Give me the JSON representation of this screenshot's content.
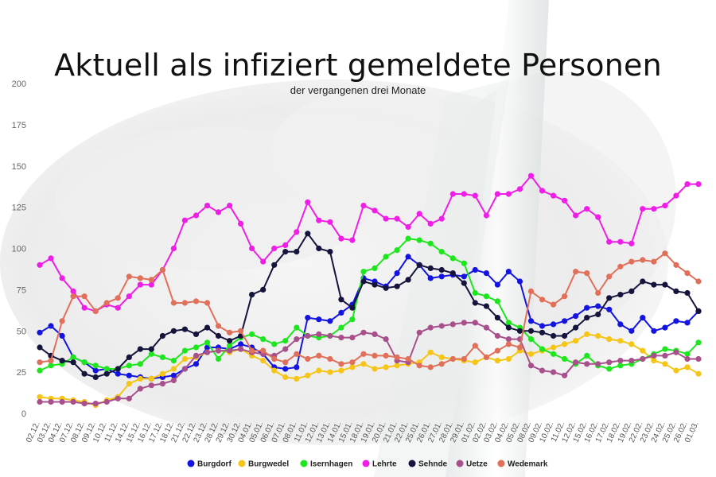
{
  "header": {
    "title": "Aktuell als infiziert gemeldete Personen",
    "subtitle": "der vergangenen drei Monate"
  },
  "chart_data": {
    "type": "line",
    "title": "Aktuell als infiziert gemeldete Personen",
    "subtitle": "der vergangenen drei Monate",
    "xlabel": "",
    "ylabel": "",
    "ylim": [
      0,
      200
    ],
    "yticks": [
      0,
      25,
      50,
      75,
      100,
      125,
      150,
      175,
      200
    ],
    "grid": false,
    "legend": "bottom",
    "x": [
      "02.12.",
      "03.12.",
      "04.12.",
      "07.12.",
      "08.12.",
      "09.12.",
      "10.12.",
      "11.12.",
      "14.12.",
      "15.12.",
      "16.12.",
      "17.12.",
      "18.12.",
      "21.12.",
      "22.12.",
      "23.12.",
      "28.12.",
      "29.12.",
      "30.12.",
      "04.01.",
      "05.01.",
      "06.01.",
      "07.01.",
      "08.01.",
      "11.01.",
      "12.01.",
      "13.01.",
      "14.01.",
      "15.01.",
      "18.01.",
      "19.01.",
      "20.01.",
      "21.01.",
      "22.01.",
      "25.01.",
      "26.01.",
      "27.01.",
      "28.01.",
      "29.01.",
      "01.02.",
      "02.02.",
      "03.02.",
      "04.02.",
      "05.02.",
      "08.02.",
      "09.02.",
      "10.02.",
      "11.02.",
      "12.02.",
      "15.02.",
      "16.02.",
      "17.02.",
      "18.02.",
      "19.02.",
      "22.02.",
      "23.02.",
      "24.02.",
      "25.02.",
      "26.02.",
      "01.03."
    ],
    "x_tick_labels": [
      "02.12.",
      "03.12.",
      "04.12.",
      "07.12.",
      "08.12.",
      "09.12.",
      "10.12.",
      "11.12.",
      "14.12.",
      "15.12.",
      "16.12.",
      "17.12.",
      "18.12.",
      "21.12.",
      "22.12.",
      "23.12.",
      "28.12.",
      "29.12.",
      "30.12.",
      "04.01.",
      "05.01.",
      "06.01.",
      "07.01.",
      "08.01.",
      "11.01.",
      "12.01.",
      "13.01.",
      "14.01.",
      "15.01.",
      "18.01.",
      "19.01.",
      "20.01.",
      "21.01.",
      "22.01.",
      "25.01.",
      "26.01.",
      "27.01.",
      "28.01.",
      "29.01.",
      "01.02.",
      "02.02.",
      "03.02.",
      "04.02.",
      "05.02.",
      "08.02.",
      "09.02.",
      "10.02.",
      "11.02.",
      "12.02.",
      "15.02.",
      "16.02.",
      "17.02.",
      "18.02.",
      "19.02.",
      "22.02.",
      "23.02.",
      "24.02.",
      "25.02.",
      "26.02.",
      "01.03."
    ],
    "series": [
      {
        "name": "Burgdorf",
        "color": "#1414e0",
        "values": [
          49,
          53,
          47,
          34,
          31,
          26,
          27,
          24,
          23,
          22,
          21,
          22,
          23,
          27,
          30,
          40,
          40,
          39,
          42,
          40,
          36,
          28,
          27,
          28,
          58,
          57,
          56,
          61,
          66,
          82,
          80,
          77,
          85,
          95,
          90,
          82,
          83,
          84,
          83,
          87,
          85,
          78,
          86,
          80,
          56,
          53,
          54,
          56,
          59,
          64,
          65,
          63,
          54,
          50,
          58,
          50,
          52,
          56,
          55,
          62
        ]
      },
      {
        "name": "Burgwedel",
        "color": "#f5c518",
        "values": [
          10,
          9,
          9,
          8,
          7,
          5,
          8,
          10,
          18,
          21,
          21,
          24,
          27,
          33,
          34,
          37,
          38,
          37,
          39,
          35,
          32,
          26,
          22,
          21,
          23,
          26,
          25,
          26,
          28,
          30,
          27,
          28,
          29,
          30,
          31,
          37,
          34,
          33,
          32,
          31,
          34,
          32,
          33,
          38,
          36,
          38,
          40,
          42,
          44,
          48,
          47,
          45,
          44,
          42,
          38,
          32,
          30,
          26,
          28,
          24
        ]
      },
      {
        "name": "Isernhagen",
        "color": "#1ee61e",
        "values": [
          26,
          29,
          30,
          34,
          31,
          29,
          27,
          27,
          29,
          30,
          36,
          34,
          32,
          38,
          40,
          43,
          33,
          41,
          46,
          48,
          45,
          42,
          44,
          52,
          47,
          46,
          47,
          52,
          57,
          86,
          88,
          95,
          99,
          106,
          105,
          103,
          98,
          94,
          91,
          73,
          71,
          68,
          55,
          52,
          45,
          39,
          36,
          33,
          30,
          35,
          29,
          27,
          29,
          30,
          33,
          36,
          39,
          38,
          36,
          43
        ]
      },
      {
        "name": "Lehrte",
        "color": "#ee1ee6",
        "values": [
          90,
          94,
          82,
          74,
          64,
          62,
          66,
          64,
          71,
          78,
          78,
          87,
          100,
          117,
          120,
          126,
          122,
          126,
          115,
          100,
          92,
          100,
          102,
          110,
          128,
          117,
          116,
          106,
          105,
          126,
          123,
          118,
          118,
          113,
          121,
          115,
          118,
          133,
          133,
          132,
          120,
          133,
          133,
          136,
          144,
          135,
          132,
          129,
          120,
          124,
          119,
          104,
          104,
          103,
          124,
          124,
          126,
          132,
          139,
          139
        ]
      },
      {
        "name": "Sehnde",
        "color": "#14143c",
        "values": [
          40,
          35,
          32,
          31,
          24,
          22,
          24,
          27,
          34,
          39,
          39,
          47,
          50,
          51,
          48,
          52,
          47,
          44,
          47,
          72,
          75,
          90,
          98,
          98,
          109,
          100,
          98,
          69,
          64,
          80,
          78,
          76,
          77,
          81,
          90,
          88,
          87,
          85,
          79,
          67,
          65,
          58,
          52,
          50,
          50,
          49,
          47,
          47,
          52,
          58,
          60,
          70,
          72,
          74,
          80,
          78,
          78,
          74,
          73,
          62
        ]
      },
      {
        "name": "Uetze",
        "color": "#a8508c",
        "values": [
          7,
          7,
          7,
          7,
          6,
          6,
          7,
          9,
          9,
          15,
          17,
          18,
          20,
          27,
          35,
          37,
          38,
          38,
          39,
          37,
          36,
          35,
          39,
          45,
          47,
          48,
          47,
          46,
          46,
          49,
          48,
          45,
          32,
          31,
          49,
          52,
          53,
          54,
          55,
          55,
          52,
          47,
          45,
          45,
          29,
          26,
          25,
          23,
          31,
          30,
          30,
          31,
          32,
          32,
          33,
          35,
          35,
          37,
          33,
          33
        ]
      },
      {
        "name": "Wedemark",
        "color": "#e0705a",
        "values": [
          31,
          32,
          56,
          71,
          71,
          62,
          67,
          70,
          83,
          82,
          81,
          87,
          67,
          67,
          68,
          67,
          53,
          49,
          50,
          38,
          38,
          33,
          31,
          36,
          33,
          35,
          33,
          30,
          31,
          36,
          35,
          35,
          34,
          33,
          29,
          28,
          30,
          33,
          33,
          41,
          34,
          38,
          42,
          40,
          74,
          69,
          66,
          71,
          86,
          85,
          73,
          83,
          89,
          92,
          93,
          92,
          97,
          90,
          85,
          80
        ]
      }
    ]
  }
}
